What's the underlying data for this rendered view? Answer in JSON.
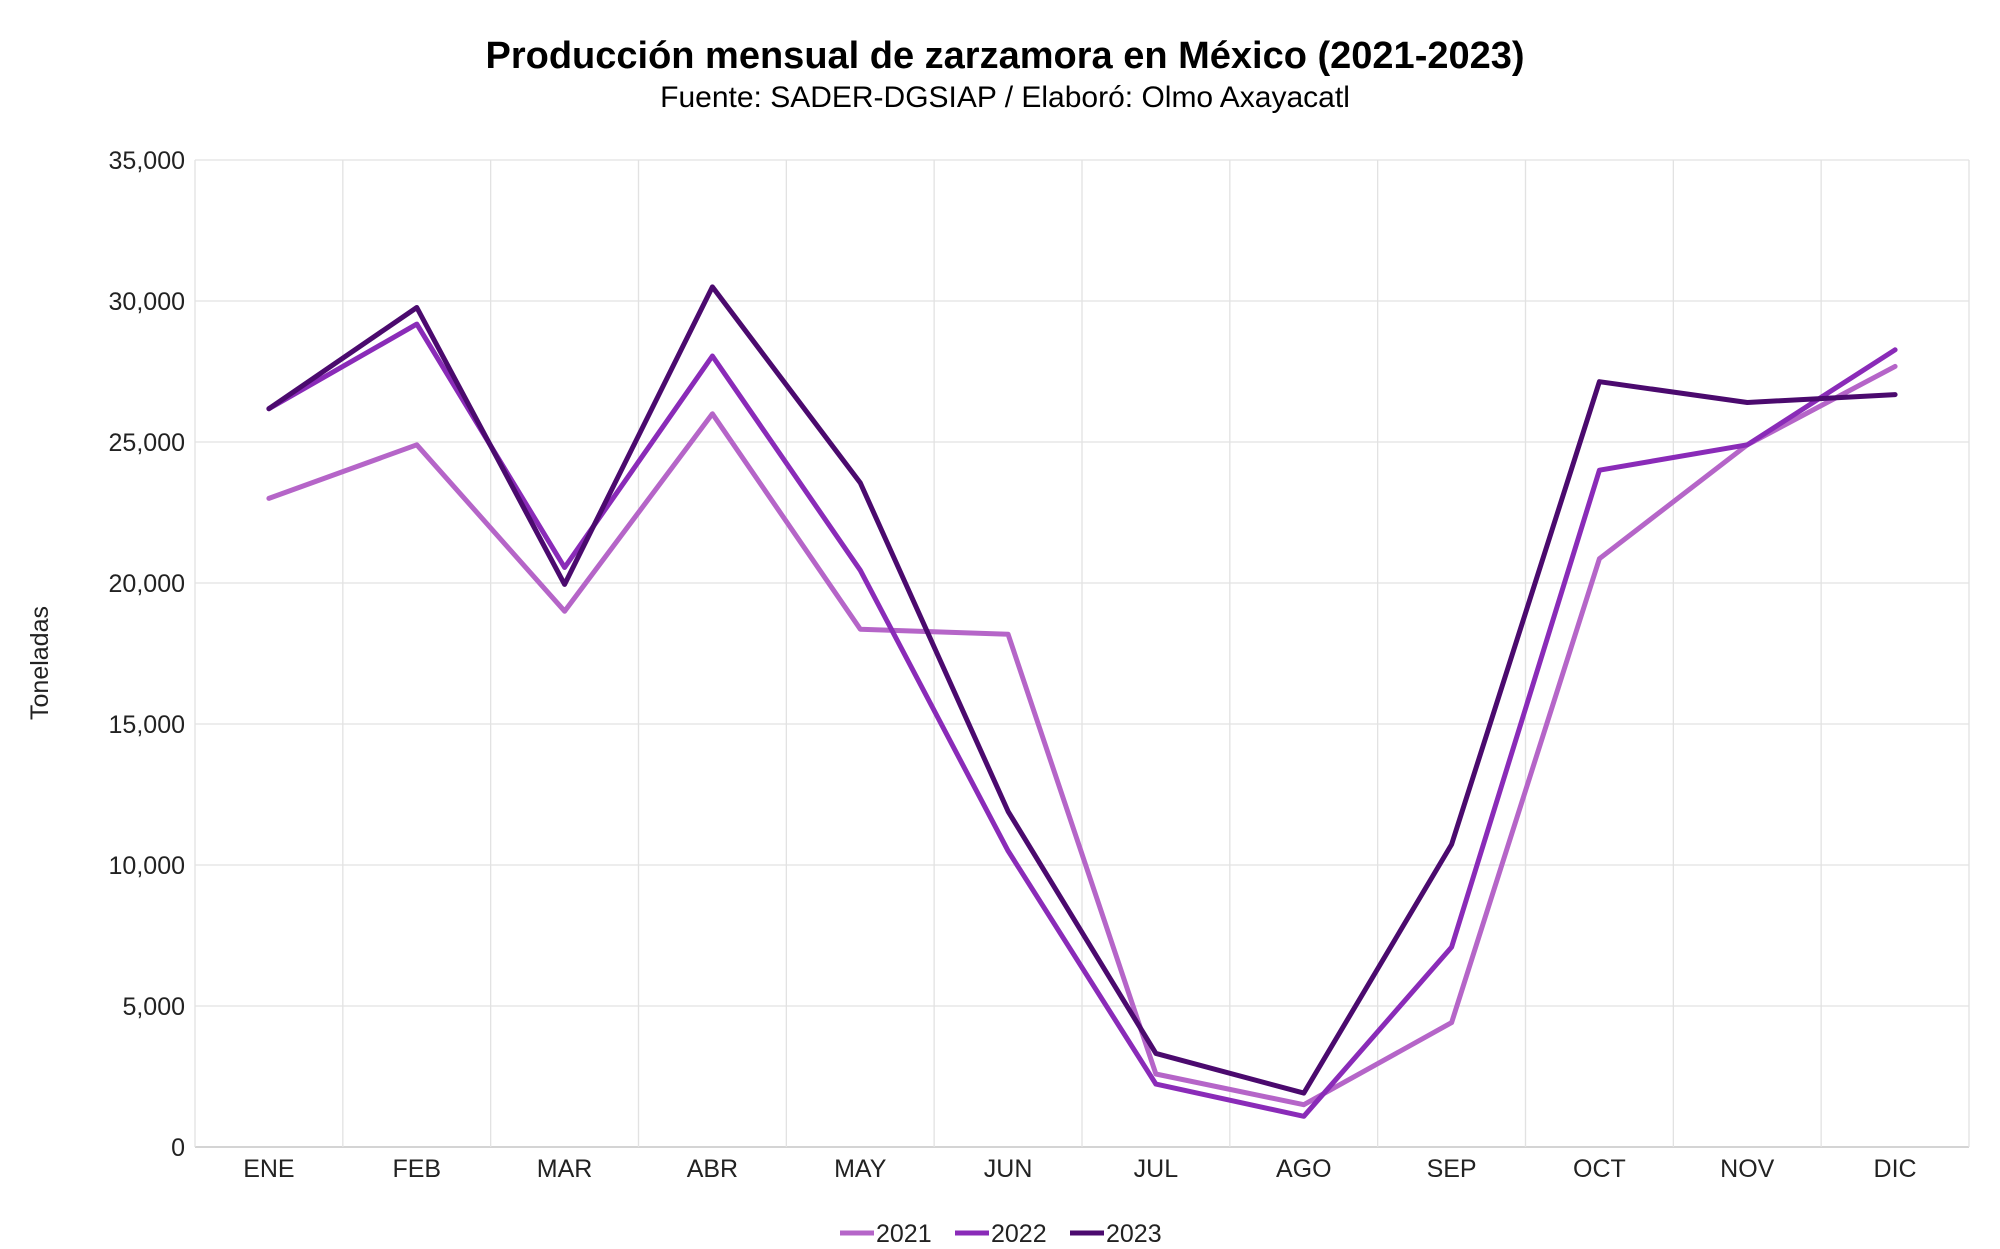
{
  "chart_data": {
    "type": "line",
    "title": "Producción mensual de zarzamora en México (2021-2023)",
    "subtitle": "Fuente: SADER-DGSIAP / Elaboró: Olmo Axayacatl",
    "xlabel": "",
    "ylabel": "Toneladas",
    "ylim": [
      0,
      35000
    ],
    "yticks": [
      "0",
      "5,000",
      "10,000",
      "15,000",
      "20,000",
      "25,000",
      "30,000",
      "35,000"
    ],
    "ytick_values": [
      0,
      5000,
      10000,
      15000,
      20000,
      25000,
      30000,
      35000
    ],
    "grid": true,
    "legend_position": "bottom-center",
    "categories": [
      "ENE",
      "FEB",
      "MAR",
      "ABR",
      "MAY",
      "JUN",
      "JUL",
      "AGO",
      "SEP",
      "OCT",
      "NOV",
      "DIC"
    ],
    "series": [
      {
        "name": "2021",
        "color": "#b565c8",
        "values": [
          23000,
          24900,
          19000,
          26000,
          18360,
          18180,
          2590,
          1500,
          4410,
          20860,
          24900,
          27680
        ]
      },
      {
        "name": "2022",
        "color": "#8a2bb8",
        "values": [
          26180,
          29180,
          20550,
          28050,
          20450,
          10500,
          2230,
          1090,
          7090,
          24000,
          24900,
          28270
        ]
      },
      {
        "name": "2023",
        "color": "#4b0a6e",
        "values": [
          26180,
          29770,
          19950,
          30500,
          23550,
          11900,
          3320,
          1910,
          10730,
          27140,
          26400,
          26680
        ]
      }
    ]
  }
}
